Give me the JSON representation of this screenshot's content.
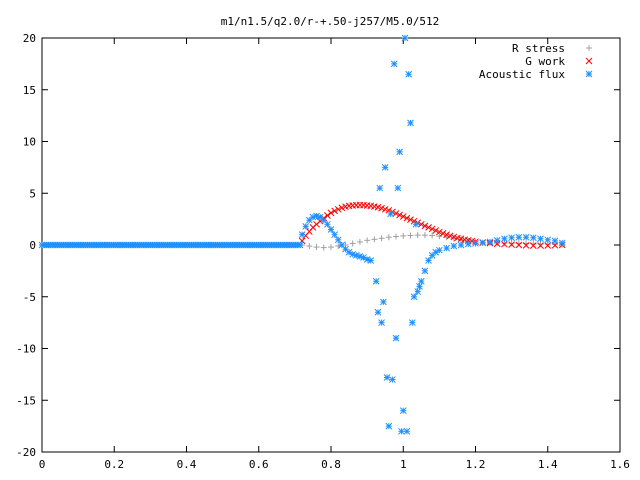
{
  "chart_data": {
    "type": "scatter",
    "title": "m1/n1.5/q2.0/r-+.50-j257/M5.0/512",
    "xlabel": "",
    "ylabel": "",
    "xlim": [
      0,
      1.6
    ],
    "ylim": [
      -20,
      20
    ],
    "xticks": [
      "0",
      "0.2",
      "0.4",
      "0.6",
      "0.8",
      "1",
      "1.2",
      "1.4",
      "1.6"
    ],
    "yticks": [
      "-20",
      "-15",
      "-10",
      "-5",
      "0",
      "5",
      "10",
      "15",
      "20"
    ],
    "grid": false,
    "legend_position": "top-right",
    "series": [
      {
        "name": "R stress",
        "marker": "plus",
        "color": "#a0a0a0",
        "points": [
          [
            0.72,
            0
          ],
          [
            0.74,
            -0.1
          ],
          [
            0.76,
            -0.2
          ],
          [
            0.78,
            -0.25
          ],
          [
            0.8,
            -0.2
          ],
          [
            0.82,
            -0.1
          ],
          [
            0.84,
            0.0
          ],
          [
            0.86,
            0.15
          ],
          [
            0.88,
            0.3
          ],
          [
            0.9,
            0.45
          ],
          [
            0.92,
            0.55
          ],
          [
            0.94,
            0.65
          ],
          [
            0.96,
            0.75
          ],
          [
            0.98,
            0.82
          ],
          [
            1.0,
            0.88
          ],
          [
            1.02,
            0.92
          ],
          [
            1.04,
            0.95
          ],
          [
            1.06,
            0.95
          ],
          [
            1.08,
            0.92
          ],
          [
            1.1,
            0.85
          ],
          [
            1.12,
            0.75
          ],
          [
            1.14,
            0.62
          ],
          [
            1.16,
            0.5
          ],
          [
            1.18,
            0.4
          ],
          [
            1.2,
            0.3
          ],
          [
            1.22,
            0.24
          ],
          [
            1.24,
            0.2
          ],
          [
            1.26,
            0.18
          ],
          [
            1.28,
            0.17
          ],
          [
            1.3,
            0.16
          ],
          [
            1.32,
            0.15
          ],
          [
            1.34,
            0.14
          ],
          [
            1.36,
            0.12
          ],
          [
            1.38,
            0.1
          ],
          [
            1.4,
            0.08
          ],
          [
            1.42,
            0.06
          ],
          [
            1.44,
            0.05
          ]
        ]
      },
      {
        "name": "G work",
        "marker": "cross",
        "color": "#ff0000",
        "points": [
          [
            0.72,
            0.4
          ],
          [
            0.73,
            0.9
          ],
          [
            0.74,
            1.3
          ],
          [
            0.75,
            1.7
          ],
          [
            0.76,
            2.0
          ],
          [
            0.77,
            2.3
          ],
          [
            0.78,
            2.6
          ],
          [
            0.79,
            2.85
          ],
          [
            0.8,
            3.1
          ],
          [
            0.81,
            3.3
          ],
          [
            0.82,
            3.45
          ],
          [
            0.83,
            3.6
          ],
          [
            0.84,
            3.7
          ],
          [
            0.85,
            3.78
          ],
          [
            0.86,
            3.82
          ],
          [
            0.87,
            3.85
          ],
          [
            0.88,
            3.86
          ],
          [
            0.89,
            3.85
          ],
          [
            0.9,
            3.82
          ],
          [
            0.91,
            3.78
          ],
          [
            0.92,
            3.72
          ],
          [
            0.93,
            3.65
          ],
          [
            0.94,
            3.55
          ],
          [
            0.95,
            3.45
          ],
          [
            0.96,
            3.35
          ],
          [
            0.97,
            3.2
          ],
          [
            0.98,
            3.05
          ],
          [
            0.99,
            2.9
          ],
          [
            1.0,
            2.75
          ],
          [
            1.01,
            2.6
          ],
          [
            1.02,
            2.45
          ],
          [
            1.03,
            2.3
          ],
          [
            1.04,
            2.15
          ],
          [
            1.05,
            2.0
          ],
          [
            1.06,
            1.85
          ],
          [
            1.07,
            1.7
          ],
          [
            1.08,
            1.55
          ],
          [
            1.09,
            1.4
          ],
          [
            1.1,
            1.25
          ],
          [
            1.11,
            1.12
          ],
          [
            1.12,
            1.0
          ],
          [
            1.13,
            0.88
          ],
          [
            1.14,
            0.78
          ],
          [
            1.15,
            0.68
          ],
          [
            1.16,
            0.6
          ],
          [
            1.17,
            0.52
          ],
          [
            1.18,
            0.45
          ],
          [
            1.19,
            0.38
          ],
          [
            1.2,
            0.32
          ],
          [
            1.22,
            0.24
          ],
          [
            1.24,
            0.18
          ],
          [
            1.26,
            0.12
          ],
          [
            1.28,
            0.08
          ],
          [
            1.3,
            0.04
          ],
          [
            1.32,
            0.0
          ],
          [
            1.34,
            -0.04
          ],
          [
            1.36,
            -0.06
          ],
          [
            1.38,
            -0.06
          ],
          [
            1.4,
            -0.05
          ],
          [
            1.42,
            -0.03
          ],
          [
            1.44,
            0.0
          ]
        ]
      },
      {
        "name": "Acoustic flux",
        "marker": "star",
        "color": "#1e90ff",
        "points": [
          [
            0.72,
            1.0
          ],
          [
            0.73,
            1.8
          ],
          [
            0.74,
            2.4
          ],
          [
            0.75,
            2.7
          ],
          [
            0.76,
            2.8
          ],
          [
            0.77,
            2.7
          ],
          [
            0.78,
            2.4
          ],
          [
            0.79,
            2.0
          ],
          [
            0.8,
            1.5
          ],
          [
            0.81,
            1.0
          ],
          [
            0.82,
            0.5
          ],
          [
            0.83,
            0.0
          ],
          [
            0.84,
            -0.4
          ],
          [
            0.85,
            -0.7
          ],
          [
            0.86,
            -0.9
          ],
          [
            0.87,
            -1.0
          ],
          [
            0.88,
            -1.1
          ],
          [
            0.89,
            -1.2
          ],
          [
            0.9,
            -1.4
          ],
          [
            0.91,
            -1.5
          ],
          [
            0.925,
            -3.5
          ],
          [
            0.93,
            -6.5
          ],
          [
            0.935,
            5.5
          ],
          [
            0.94,
            -7.5
          ],
          [
            0.945,
            -5.5
          ],
          [
            0.95,
            7.5
          ],
          [
            0.955,
            -12.8
          ],
          [
            0.96,
            -17.5
          ],
          [
            0.965,
            3.0
          ],
          [
            0.97,
            -13.0
          ],
          [
            0.975,
            17.5
          ],
          [
            0.98,
            -9.0
          ],
          [
            0.985,
            5.5
          ],
          [
            0.99,
            9.0
          ],
          [
            0.995,
            -18.0
          ],
          [
            1.0,
            -16.0
          ],
          [
            1.005,
            20.0
          ],
          [
            1.01,
            -18.0
          ],
          [
            1.015,
            16.5
          ],
          [
            1.02,
            11.8
          ],
          [
            1.025,
            -7.5
          ],
          [
            1.03,
            -5.0
          ],
          [
            1.035,
            2.0
          ],
          [
            1.04,
            -4.5
          ],
          [
            1.045,
            -4.0
          ],
          [
            1.05,
            -3.5
          ],
          [
            1.06,
            -2.5
          ],
          [
            1.07,
            -1.5
          ],
          [
            1.08,
            -1.0
          ],
          [
            1.09,
            -0.7
          ],
          [
            1.1,
            -0.5
          ],
          [
            1.12,
            -0.3
          ],
          [
            1.14,
            -0.1
          ],
          [
            1.16,
            0.0
          ],
          [
            1.18,
            0.1
          ],
          [
            1.2,
            0.15
          ],
          [
            1.22,
            0.2
          ],
          [
            1.24,
            0.3
          ],
          [
            1.26,
            0.45
          ],
          [
            1.28,
            0.6
          ],
          [
            1.3,
            0.7
          ],
          [
            1.32,
            0.75
          ],
          [
            1.34,
            0.75
          ],
          [
            1.36,
            0.7
          ],
          [
            1.38,
            0.6
          ],
          [
            1.4,
            0.5
          ],
          [
            1.42,
            0.4
          ],
          [
            1.44,
            0.2
          ]
        ]
      }
    ]
  }
}
